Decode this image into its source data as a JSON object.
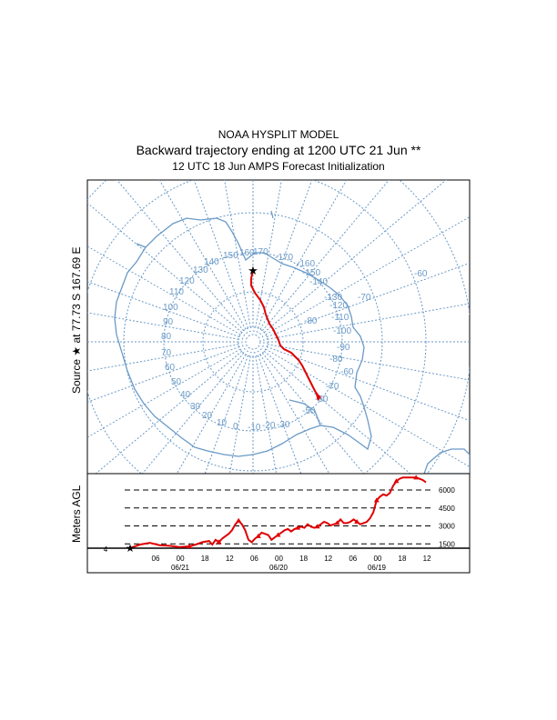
{
  "header": {
    "line1": "NOAA HYSPLIT MODEL",
    "line2": "Backward trajectory ending at 1200 UTC 21 Jun **",
    "line3": "12 UTC 18 Jun    AMPS  Forecast Initialization"
  },
  "source_label": "Source ★ at  77.73 S  167.69 E",
  "colors": {
    "map": "#6a9ac7",
    "trajectory": "#e00000",
    "axis": "#000000"
  },
  "map": {
    "longitude_labels": [
      "-60",
      "-70",
      "-80",
      "-90",
      "-100",
      "-110",
      "-120",
      "-130",
      "-140",
      "-150",
      "-160",
      "-170",
      "170",
      "160",
      "150",
      "140",
      "130",
      "120",
      "110",
      "100",
      "90",
      "80",
      "70",
      "60",
      "50",
      "40",
      "30",
      "20",
      "10",
      "0",
      "-10",
      "-20",
      "-30",
      "-50",
      "-60"
    ],
    "latitude_labels": [
      "-60",
      "-70",
      "-80"
    ]
  },
  "chart_data": {
    "type": "line",
    "title": "Backward trajectory ending at 1200 UTC 21 Jun **",
    "ylabel": "Meters AGL",
    "height_levels": [
      "6000",
      "4500",
      "3000",
      "1500"
    ],
    "ylim": [
      0,
      6000
    ],
    "time_ticks": [
      "06",
      "00",
      "18",
      "12",
      "06",
      "00",
      "18",
      "12",
      "06",
      "00",
      "18",
      "12"
    ],
    "date_labels": [
      "06/21",
      "06/20",
      "06/19"
    ],
    "start_marker_label": "4",
    "series": [
      {
        "name": "trajectory height",
        "hours_back": [
          0,
          6,
          12,
          18,
          24,
          30,
          36,
          40,
          44,
          48,
          50,
          52,
          54,
          56,
          58,
          60,
          62,
          64,
          66,
          68,
          70,
          72,
          74,
          76,
          78,
          80,
          82,
          84,
          86,
          88,
          90,
          92,
          94,
          96,
          98,
          100,
          102,
          104,
          106,
          108,
          110,
          112,
          114,
          116,
          118,
          120,
          122,
          124,
          126,
          128,
          130,
          132,
          134,
          136,
          138,
          140,
          142,
          144,
          146,
          148,
          150,
          152,
          154,
          156,
          158,
          160,
          162,
          164,
          166,
          168,
          170,
          172,
          174,
          176,
          178,
          180
        ],
        "values": [
          4,
          300,
          450,
          250,
          200,
          100,
          150,
          300,
          500,
          600,
          300,
          700,
          500,
          800,
          1000,
          1200,
          1500,
          2000,
          2300,
          2000,
          1500,
          700,
          500,
          800,
          1000,
          1300,
          1200,
          1100,
          700,
          900,
          1100,
          1300,
          1500,
          1600,
          1400,
          1600,
          1700,
          1800,
          1700,
          2000,
          1800,
          1700,
          1800,
          2000,
          2200,
          2100,
          1900,
          2000,
          2100,
          2400,
          2100,
          2100,
          2200,
          2400,
          2200,
          2000,
          2100,
          2200,
          2500,
          3000,
          4000,
          4300,
          4500,
          4400,
          4600,
          5200,
          5600,
          5800,
          5900,
          5900,
          5900,
          5900,
          5900,
          5800,
          5700,
          5500
        ]
      }
    ]
  }
}
